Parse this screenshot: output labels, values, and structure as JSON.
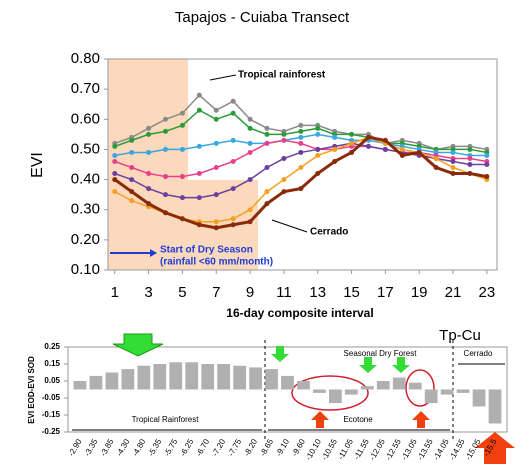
{
  "chart_data": [
    {
      "type": "line",
      "title": "Tapajos - Cuiaba Transect",
      "y_label": "EVI",
      "x_label": "16-day composite interval",
      "x": [
        1,
        2,
        3,
        4,
        5,
        6,
        7,
        8,
        9,
        10,
        11,
        12,
        13,
        14,
        15,
        16,
        17,
        18,
        19,
        20,
        21,
        22,
        23
      ],
      "xlim": [
        0.6,
        23.6
      ],
      "xticks": [
        1,
        3,
        5,
        7,
        9,
        11,
        13,
        15,
        17,
        19,
        21,
        23
      ],
      "ylim": [
        0.1,
        0.8
      ],
      "yticks": [
        {
          "value": 0.1,
          "label": "0.10"
        },
        {
          "value": 0.2,
          "label": "0.20"
        },
        {
          "value": 0.3,
          "label": "0.30"
        },
        {
          "value": 0.4,
          "label": "0.40"
        },
        {
          "value": 0.5,
          "label": "0.50"
        },
        {
          "value": 0.6,
          "label": "0.60"
        },
        {
          "value": 0.7,
          "label": "0.70"
        },
        {
          "value": 0.8,
          "label": "0.80"
        }
      ],
      "annotations": [
        "Tropical rainforest",
        "Cerrado",
        "Start of Dry Season",
        "(rainfall <60 mm/month)"
      ],
      "series": [
        {
          "color": "#8a8a8a",
          "values": [
            0.52,
            0.54,
            0.57,
            0.6,
            0.62,
            0.68,
            0.63,
            0.66,
            0.6,
            0.57,
            0.56,
            0.58,
            0.58,
            0.56,
            0.55,
            0.55,
            0.52,
            0.53,
            0.52,
            0.5,
            0.51,
            0.51,
            0.5
          ]
        },
        {
          "color": "#2e9b3a",
          "values": [
            0.51,
            0.53,
            0.55,
            0.56,
            0.58,
            0.63,
            0.6,
            0.62,
            0.57,
            0.55,
            0.55,
            0.56,
            0.57,
            0.55,
            0.55,
            0.54,
            0.52,
            0.52,
            0.51,
            0.5,
            0.5,
            0.5,
            0.49
          ]
        },
        {
          "color": "#3aa7e0",
          "values": [
            0.48,
            0.49,
            0.49,
            0.5,
            0.5,
            0.51,
            0.52,
            0.53,
            0.52,
            0.52,
            0.53,
            0.54,
            0.55,
            0.54,
            0.53,
            0.53,
            0.52,
            0.51,
            0.5,
            0.49,
            0.49,
            0.48,
            0.48
          ]
        },
        {
          "color": "#e8408c",
          "values": [
            0.46,
            0.44,
            0.42,
            0.41,
            0.41,
            0.42,
            0.44,
            0.46,
            0.49,
            0.52,
            0.53,
            0.52,
            0.5,
            0.5,
            0.51,
            0.51,
            0.5,
            0.49,
            0.49,
            0.48,
            0.47,
            0.47,
            0.46
          ]
        },
        {
          "color": "#6a3fa0",
          "values": [
            0.42,
            0.4,
            0.37,
            0.35,
            0.34,
            0.34,
            0.35,
            0.37,
            0.4,
            0.44,
            0.47,
            0.49,
            0.5,
            0.51,
            0.52,
            0.51,
            0.5,
            0.49,
            0.48,
            0.47,
            0.46,
            0.45,
            0.45
          ]
        },
        {
          "color": "#f5a020",
          "values": [
            0.36,
            0.33,
            0.31,
            0.29,
            0.27,
            0.26,
            0.26,
            0.27,
            0.3,
            0.36,
            0.4,
            0.44,
            0.48,
            0.5,
            0.52,
            0.54,
            0.52,
            0.5,
            0.49,
            0.47,
            0.44,
            0.42,
            0.4
          ]
        },
        {
          "color": "#8b2a0a",
          "values": [
            0.4,
            0.36,
            0.32,
            0.29,
            0.27,
            0.25,
            0.24,
            0.25,
            0.26,
            0.32,
            0.36,
            0.37,
            0.42,
            0.46,
            0.49,
            0.54,
            0.53,
            0.48,
            0.49,
            0.44,
            0.42,
            0.42,
            0.41
          ]
        }
      ]
    },
    {
      "type": "bar",
      "y_label": "EVI EOD-EVI SOD",
      "color": "#b0b0b0",
      "categories": [
        "-2.90",
        "-3.35",
        "-3.85",
        "-4.30",
        "-4.80",
        "-5.35",
        "-5.75",
        "-6.25",
        "-6.70",
        "-7.20",
        "-7.75",
        "-8.20",
        "-8.65",
        "-9.10",
        "-9.60",
        "-10.10",
        "-10.55",
        "-11.05",
        "-11.55",
        "-12.05",
        "-12.55",
        "-13.05",
        "-13.55",
        "-14.05",
        "-14.55",
        "-15.05",
        "-15.5"
      ],
      "values": [
        0.05,
        0.08,
        0.1,
        0.12,
        0.14,
        0.15,
        0.16,
        0.16,
        0.15,
        0.15,
        0.14,
        0.13,
        0.12,
        0.08,
        0.05,
        -0.02,
        -0.08,
        -0.03,
        0.02,
        0.05,
        0.07,
        0.04,
        -0.08,
        -0.03,
        -0.02,
        -0.1,
        -0.2
      ],
      "ylim": [
        -0.25,
        0.25
      ],
      "yticks": [
        0.25,
        0.15,
        0.05,
        -0.05,
        -0.15,
        -0.25
      ],
      "annotations": [
        "Tp-Cu",
        "Seasonal Dry Forest",
        "Cerrado",
        "Tropical Rainforest",
        "Ecotone"
      ]
    }
  ]
}
